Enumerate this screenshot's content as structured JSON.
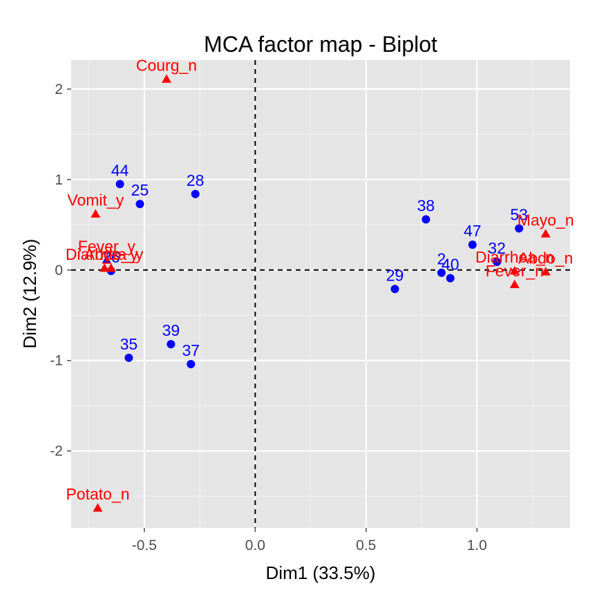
{
  "chart_data": {
    "type": "scatter",
    "title": "MCA factor map - Biplot",
    "xlabel": "Dim1 (33.5%)",
    "ylabel": "Dim2 (12.9%)",
    "xlim": [
      -0.83,
      1.42
    ],
    "ylim": [
      -2.85,
      2.32
    ],
    "xticks": [
      -0.5,
      0.0,
      0.5,
      1.0
    ],
    "xtick_labels": [
      "-0.5",
      "0.0",
      "0.5",
      "1.0"
    ],
    "yticks": [
      -2,
      -1,
      0,
      1,
      2
    ],
    "ytick_labels": [
      "-2",
      "-1",
      "0",
      "1",
      "2"
    ],
    "grid": true,
    "legend": "none",
    "reference_lines": {
      "x": 0,
      "y": 0,
      "style": "dashed"
    },
    "colors": {
      "individuals": "#0000ff",
      "categories": "#ff0000",
      "panel": "#e5e5e5",
      "grid": "#ffffff"
    },
    "series": [
      {
        "role": "individuals",
        "marker": "circle",
        "points": [
          {
            "label": "44",
            "x": -0.61,
            "y": 0.95
          },
          {
            "label": "25",
            "x": -0.52,
            "y": 0.73
          },
          {
            "label": "28",
            "x": -0.27,
            "y": 0.84
          },
          {
            "label": "38",
            "x": 0.77,
            "y": 0.56
          },
          {
            "label": "53",
            "x": 1.19,
            "y": 0.46
          },
          {
            "label": "47",
            "x": 0.98,
            "y": 0.28
          },
          {
            "label": "32",
            "x": 1.09,
            "y": 0.09
          },
          {
            "label": "2",
            "x": 0.84,
            "y": -0.03
          },
          {
            "label": "40",
            "x": 0.88,
            "y": -0.09
          },
          {
            "label": "29",
            "x": 0.63,
            "y": -0.21
          },
          {
            "label": "26",
            "x": -0.65,
            "y": -0.01
          },
          {
            "label": "39",
            "x": -0.38,
            "y": -0.82
          },
          {
            "label": "35",
            "x": -0.57,
            "y": -0.97
          },
          {
            "label": "37",
            "x": -0.29,
            "y": -1.04
          }
        ]
      },
      {
        "role": "categories",
        "marker": "triangle",
        "points": [
          {
            "label": "Courg_n",
            "x": -0.4,
            "y": 2.11
          },
          {
            "label": "Vomit_y",
            "x": -0.72,
            "y": 0.62
          },
          {
            "label": "Fever_y",
            "x": -0.67,
            "y": 0.11
          },
          {
            "label": "Abdo_y",
            "x": -0.65,
            "y": 0.02
          },
          {
            "label": "Diarrhea_y",
            "x": -0.68,
            "y": 0.02
          },
          {
            "label": "Potato_n",
            "x": -0.71,
            "y": -2.63
          },
          {
            "label": "Mayo_n",
            "x": 1.31,
            "y": 0.4
          },
          {
            "label": "Diarrhea_n",
            "x": 1.17,
            "y": -0.01
          },
          {
            "label": "Abdo_n",
            "x": 1.31,
            "y": -0.02
          },
          {
            "label": "Fever_n",
            "x": 1.17,
            "y": -0.16
          }
        ]
      }
    ]
  }
}
